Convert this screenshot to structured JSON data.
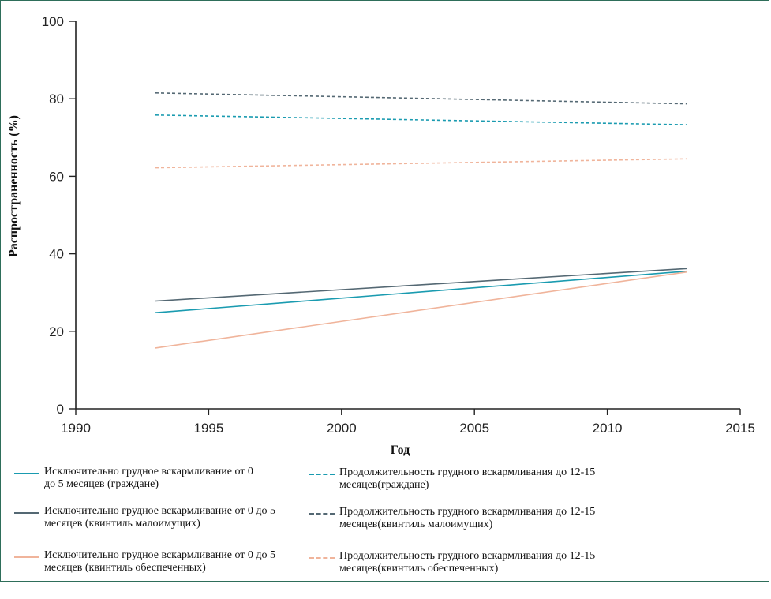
{
  "chart_data": {
    "type": "line",
    "xlabel": "Год",
    "ylabel": "Распространенность (%)",
    "xlim": [
      1990,
      2015
    ],
    "ylim": [
      0,
      100
    ],
    "xticks": [
      "1990",
      "1995",
      "2000",
      "2005",
      "2010",
      "2015"
    ],
    "yticks": [
      "0",
      "20",
      "40",
      "60",
      "80",
      "100"
    ],
    "grid": false,
    "legend_position": "bottom",
    "series": [
      {
        "name": "Исключительно грудное вскармливание от 0 до 5 месяцев (граждане)",
        "color": "#1a9bb0",
        "dash": "solid",
        "x": [
          1993,
          2013
        ],
        "y": [
          24.8,
          35.5
        ]
      },
      {
        "name": "Исключительно грудное вскармливание от 0 до 5 месяцев (квинтиль малоимущих)",
        "color": "#546873",
        "dash": "solid",
        "x": [
          1993,
          2013
        ],
        "y": [
          27.8,
          36.2
        ]
      },
      {
        "name": "Исключительно грудное вскармливание от 0 до 5 месяцев (квинтиль обеспеченных)",
        "color": "#f0b49b",
        "dash": "solid",
        "x": [
          1993,
          2013
        ],
        "y": [
          15.7,
          35.3
        ]
      },
      {
        "name": "Продолжительность грудного вскармливания до 12-15 месяцев(граждане)",
        "color": "#1a9bb0",
        "dash": "dashed",
        "x": [
          1993,
          2013
        ],
        "y": [
          75.8,
          73.3
        ]
      },
      {
        "name": "Продолжительность грудного вскармливания до 12-15 месяцев(квинтиль малоимущих)",
        "color": "#546873",
        "dash": "dashed",
        "x": [
          1993,
          2013
        ],
        "y": [
          81.5,
          78.7
        ]
      },
      {
        "name": "Продолжительность грудного вскармливания до 12-15 месяцев(квинтиль обеспеченных)",
        "color": "#f0b49b",
        "dash": "dashed",
        "x": [
          1993,
          2013
        ],
        "y": [
          62.2,
          64.5
        ]
      }
    ]
  }
}
